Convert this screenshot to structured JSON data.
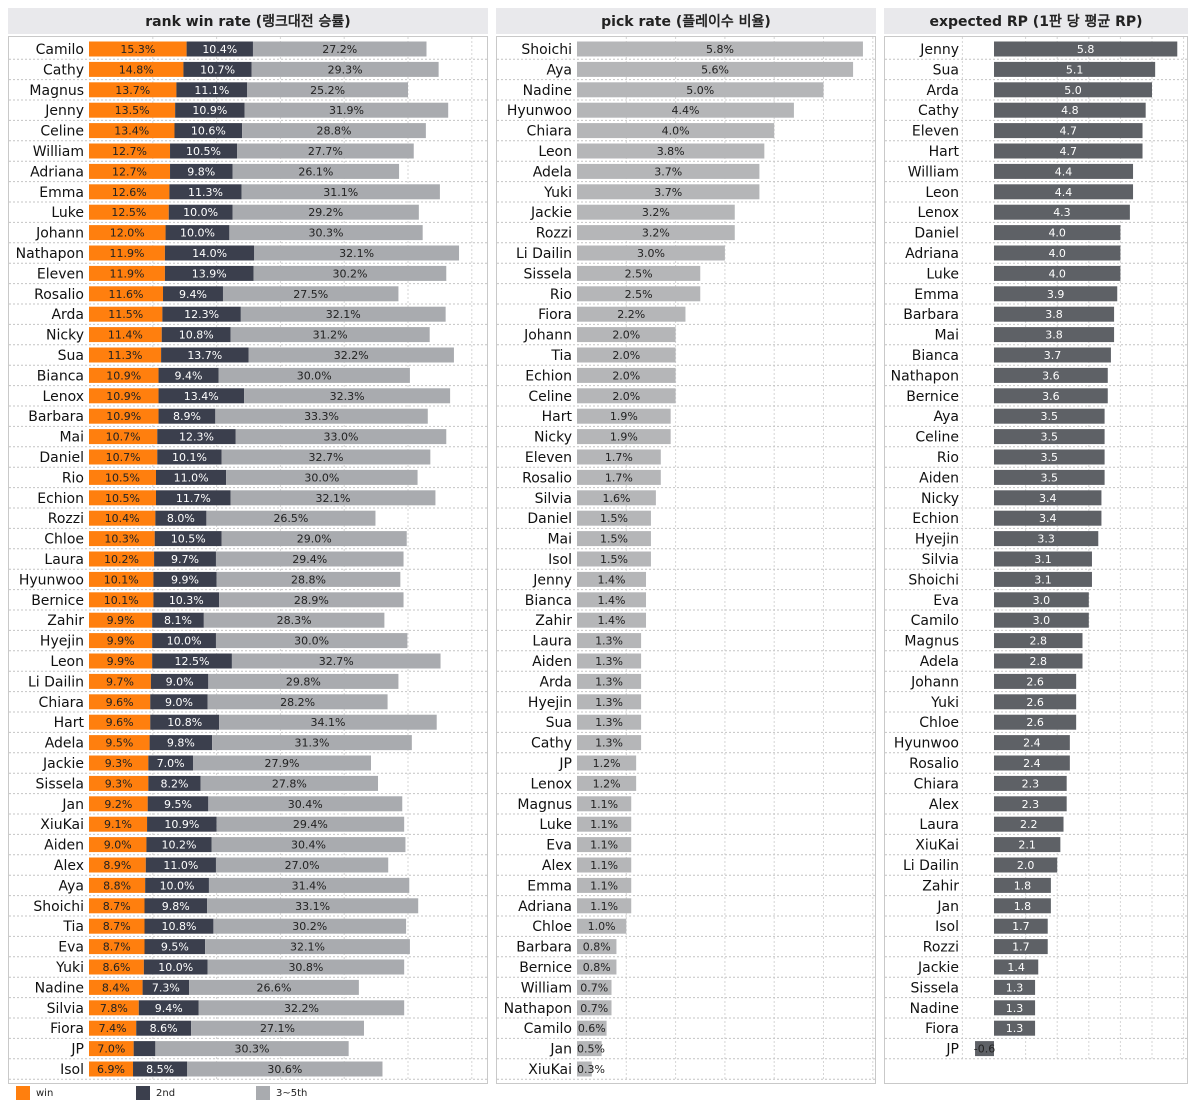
{
  "colors": {
    "win": "#ff7f0e",
    "second": "#3b3f4d",
    "third_fifth": "#a9abaf",
    "pick": "#b5b6b8",
    "rp": "#5e6166"
  },
  "legend": [
    {
      "key": "win",
      "label": "win"
    },
    {
      "key": "second",
      "label": "2nd"
    },
    {
      "key": "third_fifth",
      "label": "3~5th"
    }
  ],
  "chart_data": [
    {
      "type": "bar",
      "orientation": "horizontal",
      "stacked": true,
      "title": "rank win rate (랭크대전 승률)",
      "categories": [
        "Camilo",
        "Cathy",
        "Magnus",
        "Jenny",
        "Celine",
        "William",
        "Adriana",
        "Emma",
        "Luke",
        "Johann",
        "Nathapon",
        "Eleven",
        "Rosalio",
        "Arda",
        "Nicky",
        "Sua",
        "Bianca",
        "Lenox",
        "Barbara",
        "Mai",
        "Daniel",
        "Rio",
        "Echion",
        "Rozzi",
        "Chloe",
        "Laura",
        "Hyunwoo",
        "Bernice",
        "Zahir",
        "Hyejin",
        "Leon",
        "Li Dailin",
        "Chiara",
        "Hart",
        "Adela",
        "Jackie",
        "Sissela",
        "Jan",
        "XiuKai",
        "Aiden",
        "Alex",
        "Aya",
        "Shoichi",
        "Tia",
        "Eva",
        "Yuki",
        "Nadine",
        "Silvia",
        "Fiora",
        "JP",
        "Isol"
      ],
      "series": [
        {
          "name": "win",
          "values": [
            "15.3%",
            "14.8%",
            "13.7%",
            "13.5%",
            "13.4%",
            "12.7%",
            "12.7%",
            "12.6%",
            "12.5%",
            "12.0%",
            "11.9%",
            "11.9%",
            "11.6%",
            "11.5%",
            "11.4%",
            "11.3%",
            "10.9%",
            "10.9%",
            "10.9%",
            "10.7%",
            "10.7%",
            "10.5%",
            "10.5%",
            "10.4%",
            "10.3%",
            "10.2%",
            "10.1%",
            "10.1%",
            "9.9%",
            "9.9%",
            "9.9%",
            "9.7%",
            "9.6%",
            "9.6%",
            "9.5%",
            "9.3%",
            "9.3%",
            "9.2%",
            "9.1%",
            "9.0%",
            "8.9%",
            "8.8%",
            "8.7%",
            "8.7%",
            "8.7%",
            "8.6%",
            "8.4%",
            "7.8%",
            "7.4%",
            "7.0%",
            "6.9%"
          ]
        },
        {
          "name": "2nd",
          "values": [
            "10.4%",
            "10.7%",
            "11.1%",
            "10.9%",
            "10.6%",
            "10.5%",
            "9.8%",
            "11.3%",
            "10.0%",
            "10.0%",
            "14.0%",
            "13.9%",
            "9.4%",
            "12.3%",
            "10.8%",
            "13.7%",
            "9.4%",
            "13.4%",
            "8.9%",
            "12.3%",
            "10.1%",
            "11.0%",
            "11.7%",
            "8.0%",
            "10.5%",
            "9.7%",
            "9.9%",
            "10.3%",
            "8.1%",
            "10.0%",
            "12.5%",
            "9.0%",
            "9.0%",
            "10.8%",
            "9.8%",
            "7.0%",
            "8.2%",
            "9.5%",
            "10.9%",
            "10.2%",
            "11.0%",
            "10.0%",
            "9.8%",
            "10.8%",
            "9.5%",
            "10.0%",
            "7.3%",
            "9.4%",
            "8.6%",
            "",
            "8.5%"
          ]
        },
        {
          "name": "3~5th",
          "values": [
            "27.2%",
            "29.3%",
            "25.2%",
            "31.9%",
            "28.8%",
            "27.7%",
            "26.1%",
            "31.1%",
            "29.2%",
            "30.3%",
            "32.1%",
            "30.2%",
            "27.5%",
            "32.1%",
            "31.2%",
            "32.2%",
            "30.0%",
            "32.3%",
            "33.3%",
            "33.0%",
            "32.7%",
            "30.0%",
            "32.1%",
            "26.5%",
            "29.0%",
            "29.4%",
            "28.8%",
            "28.9%",
            "28.3%",
            "30.0%",
            "32.7%",
            "29.8%",
            "28.2%",
            "34.1%",
            "31.3%",
            "27.9%",
            "27.8%",
            "30.4%",
            "29.4%",
            "30.4%",
            "27.0%",
            "31.4%",
            "33.1%",
            "30.2%",
            "32.1%",
            "30.8%",
            "26.6%",
            "32.2%",
            "27.1%",
            "30.3%",
            "30.6%"
          ]
        }
      ],
      "hidden_values": {
        "JP_2nd": 3.4
      }
    },
    {
      "type": "bar",
      "orientation": "horizontal",
      "title": "pick rate (플레이수 비율)",
      "categories": [
        "Shoichi",
        "Aya",
        "Nadine",
        "Hyunwoo",
        "Chiara",
        "Leon",
        "Adela",
        "Yuki",
        "Jackie",
        "Rozzi",
        "Li Dailin",
        "Sissela",
        "Rio",
        "Fiora",
        "Johann",
        "Tia",
        "Echion",
        "Celine",
        "Hart",
        "Nicky",
        "Eleven",
        "Rosalio",
        "Silvia",
        "Daniel",
        "Mai",
        "Isol",
        "Jenny",
        "Bianca",
        "Zahir",
        "Laura",
        "Aiden",
        "Arda",
        "Hyejin",
        "Sua",
        "Cathy",
        "JP",
        "Lenox",
        "Magnus",
        "Luke",
        "Eva",
        "Alex",
        "Emma",
        "Adriana",
        "Chloe",
        "Barbara",
        "Bernice",
        "William",
        "Nathapon",
        "Camilo",
        "Jan",
        "XiuKai"
      ],
      "values": [
        "5.8%",
        "5.6%",
        "5.0%",
        "4.4%",
        "4.0%",
        "3.8%",
        "3.7%",
        "3.7%",
        "3.2%",
        "3.2%",
        "3.0%",
        "2.5%",
        "2.5%",
        "2.2%",
        "2.0%",
        "2.0%",
        "2.0%",
        "2.0%",
        "1.9%",
        "1.9%",
        "1.7%",
        "1.7%",
        "1.6%",
        "1.5%",
        "1.5%",
        "1.5%",
        "1.4%",
        "1.4%",
        "1.4%",
        "1.3%",
        "1.3%",
        "1.3%",
        "1.3%",
        "1.3%",
        "1.3%",
        "1.2%",
        "1.2%",
        "1.1%",
        "1.1%",
        "1.1%",
        "1.1%",
        "1.1%",
        "1.1%",
        "1.0%",
        "0.8%",
        "0.8%",
        "0.7%",
        "0.7%",
        "0.6%",
        "0.5%",
        "0.3%"
      ]
    },
    {
      "type": "bar",
      "orientation": "horizontal",
      "title": "expected RP (1판 당 평균 RP)",
      "categories": [
        "Jenny",
        "Sua",
        "Arda",
        "Cathy",
        "Eleven",
        "Hart",
        "William",
        "Leon",
        "Lenox",
        "Daniel",
        "Adriana",
        "Luke",
        "Emma",
        "Barbara",
        "Mai",
        "Bianca",
        "Nathapon",
        "Bernice",
        "Aya",
        "Celine",
        "Rio",
        "Aiden",
        "Nicky",
        "Echion",
        "Hyejin",
        "Silvia",
        "Shoichi",
        "Eva",
        "Camilo",
        "Magnus",
        "Adela",
        "Johann",
        "Yuki",
        "Chloe",
        "Hyunwoo",
        "Rosalio",
        "Chiara",
        "Alex",
        "Laura",
        "XiuKai",
        "Li Dailin",
        "Zahir",
        "Jan",
        "Isol",
        "Rozzi",
        "Jackie",
        "Sissela",
        "Nadine",
        "Fiora",
        "JP"
      ],
      "values": [
        "5.8",
        "5.1",
        "5.0",
        "4.8",
        "4.7",
        "4.7",
        "4.4",
        "4.4",
        "4.3",
        "4.0",
        "4.0",
        "4.0",
        "3.9",
        "3.8",
        "3.8",
        "3.7",
        "3.6",
        "3.6",
        "3.5",
        "3.5",
        "3.5",
        "3.5",
        "3.4",
        "3.4",
        "3.3",
        "3.1",
        "3.1",
        "3.0",
        "3.0",
        "2.8",
        "2.8",
        "2.6",
        "2.6",
        "2.6",
        "2.4",
        "2.4",
        "2.3",
        "2.3",
        "2.2",
        "2.1",
        "2.0",
        "1.8",
        "1.8",
        "1.7",
        "1.7",
        "1.4",
        "1.3",
        "1.3",
        "1.3",
        "-0.6"
      ]
    }
  ]
}
